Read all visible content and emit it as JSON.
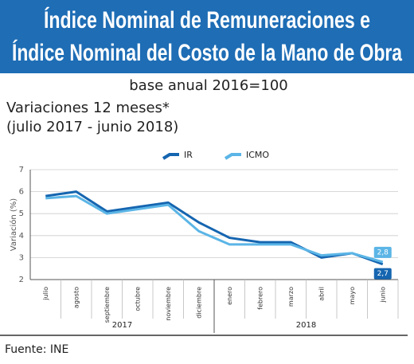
{
  "chart_data": {
    "type": "line",
    "title": [
      "Índice Nominal de Remuneraciones e",
      "Índice Nominal del Costo de la Mano de Obra"
    ],
    "subtitle": "base anual 2016=100",
    "heading": [
      "Variaciones 12 meses*",
      "(julio 2017 - junio 2018)"
    ],
    "ylabel": "Variación (%)",
    "categories": [
      "julio",
      "agosto",
      "septiembre",
      "octubre",
      "noviembre",
      "diciembre",
      "enero",
      "febrero",
      "marzo",
      "abril",
      "mayo",
      "junio"
    ],
    "groups": [
      {
        "label": "2017",
        "count": 6
      },
      {
        "label": "2018",
        "count": 6
      }
    ],
    "series": [
      {
        "name": "IR",
        "color": "#1565b0",
        "values": [
          5.8,
          6.0,
          5.1,
          5.3,
          5.5,
          4.6,
          3.9,
          3.7,
          3.7,
          3.0,
          3.2,
          2.7
        ],
        "value_labels": [
          null,
          null,
          null,
          null,
          null,
          null,
          null,
          null,
          null,
          null,
          null,
          "2,7"
        ]
      },
      {
        "name": "ICMO",
        "color": "#5bb5e6",
        "values": [
          5.7,
          5.8,
          5.0,
          5.2,
          5.4,
          4.2,
          3.6,
          3.6,
          3.6,
          3.1,
          3.2,
          2.8
        ],
        "value_labels": [
          null,
          null,
          null,
          null,
          null,
          null,
          null,
          null,
          null,
          null,
          null,
          "2,8"
        ]
      }
    ],
    "ylim": [
      2,
      7
    ],
    "yticks": [
      2,
      3,
      4,
      5,
      6,
      7
    ],
    "source": "Fuente: INE"
  }
}
